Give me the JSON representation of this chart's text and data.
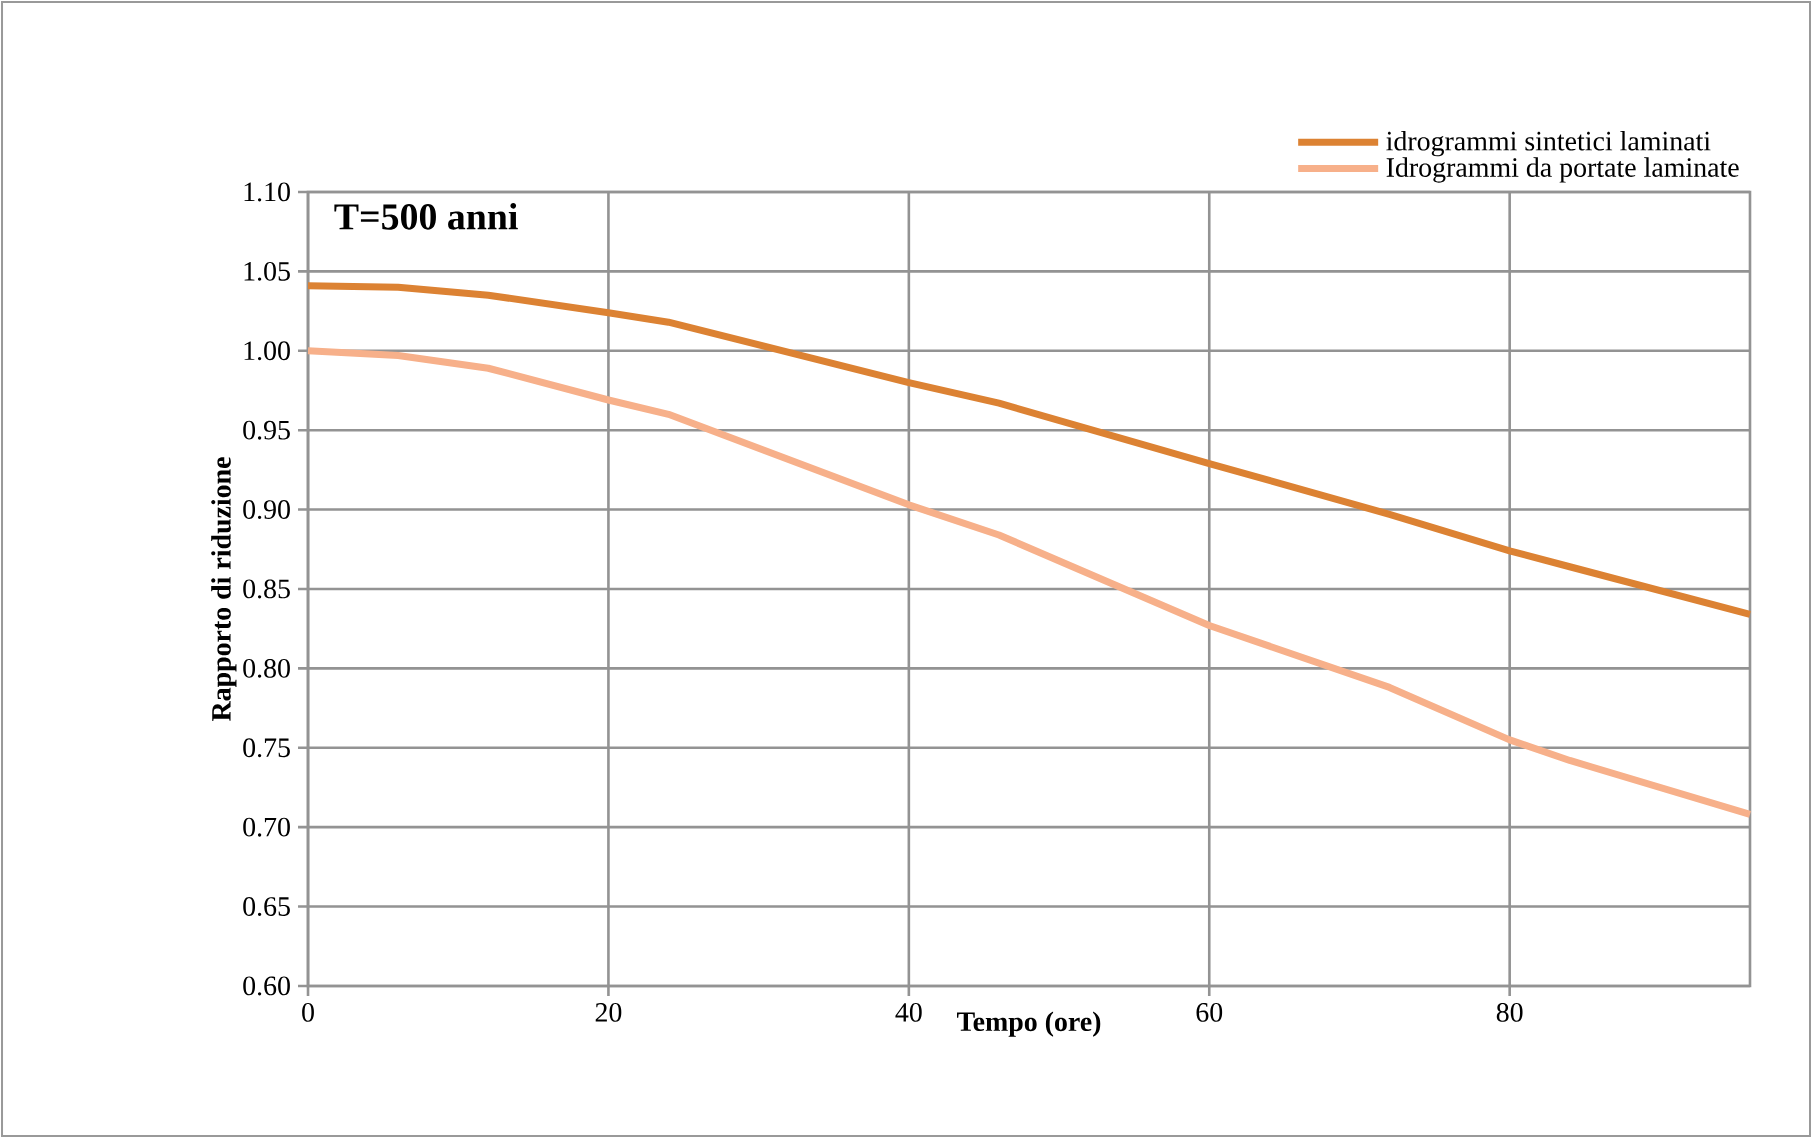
{
  "chart_data": {
    "type": "line",
    "title": "T=500 anni",
    "xlabel": "Tempo (ore)",
    "ylabel": "Rapporto di riduzione",
    "xlim": [
      0,
      96
    ],
    "ylim": [
      0.6,
      1.1
    ],
    "xticks": [
      0,
      20,
      40,
      60,
      80
    ],
    "yticks": [
      {
        "value": 0.6,
        "label": "0.60"
      },
      {
        "value": 0.65,
        "label": "0.65"
      },
      {
        "value": 0.7,
        "label": "0.70"
      },
      {
        "value": 0.75,
        "label": "0.75"
      },
      {
        "value": 0.8,
        "label": "0.80"
      },
      {
        "value": 0.85,
        "label": "0.85"
      },
      {
        "value": 0.9,
        "label": "0.90"
      },
      {
        "value": 0.95,
        "label": "0.95"
      },
      {
        "value": 1.0,
        "label": "1.00"
      },
      {
        "value": 1.05,
        "label": "1.05"
      },
      {
        "value": 1.1,
        "label": "1.10"
      }
    ],
    "grid": true,
    "legend": "top right",
    "marker": "none",
    "line_style": "solid",
    "series": [
      {
        "name": "idrogrammi sintetici laminati",
        "color": "#dc8233",
        "x": [
          0,
          6,
          12,
          20,
          24,
          40,
          46,
          60,
          72,
          80,
          84,
          96
        ],
        "values": [
          1.041,
          1.04,
          1.035,
          1.024,
          1.018,
          0.98,
          0.967,
          0.929,
          0.897,
          0.874,
          0.864,
          0.834
        ]
      },
      {
        "name": "Idrogrammi da portate laminate",
        "color": "#f7b08a",
        "x": [
          0,
          6,
          12,
          20,
          24,
          40,
          46,
          60,
          72,
          80,
          84,
          96
        ],
        "values": [
          1.0,
          0.997,
          0.989,
          0.969,
          0.96,
          0.903,
          0.884,
          0.827,
          0.788,
          0.755,
          0.742,
          0.708
        ]
      }
    ]
  }
}
